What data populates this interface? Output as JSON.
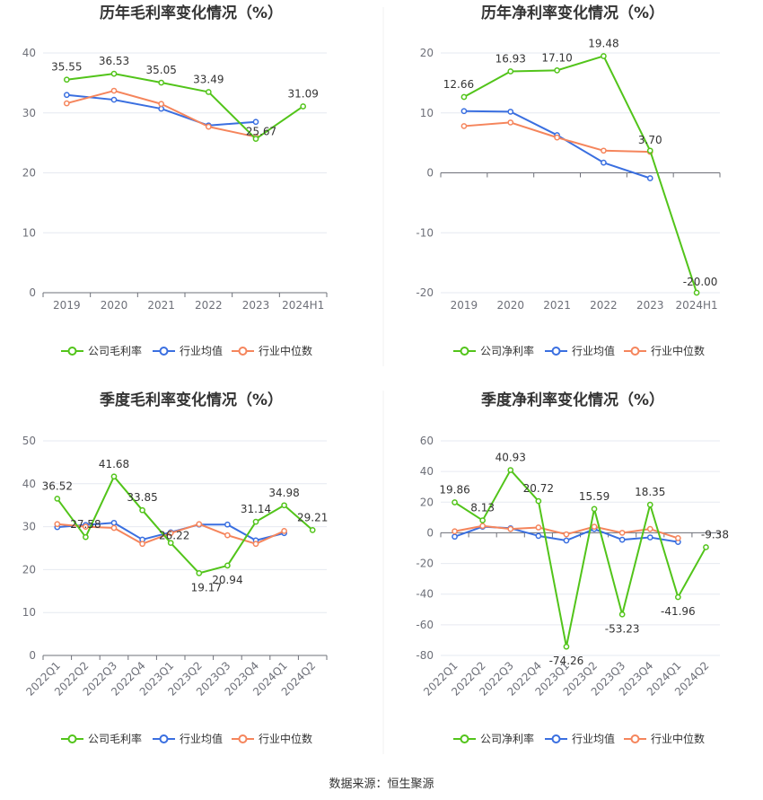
{
  "colors": {
    "company": "#52c41a",
    "industry_avg": "#3a6fe0",
    "industry_median": "#f5855c",
    "grid": "#e6e9f0",
    "axis": "#6e7079"
  },
  "legend": {
    "gross": [
      "公司毛利率",
      "行业均值",
      "行业中位数"
    ],
    "net": [
      "公司净利率",
      "行业均值",
      "行业中位数"
    ]
  },
  "source": "数据来源：恒生聚源",
  "chart_data": [
    {
      "type": "line",
      "title": "历年毛利率变化情况（%）",
      "categories": [
        "2019",
        "2020",
        "2021",
        "2022",
        "2023",
        "2024H1"
      ],
      "ylim": [
        0,
        40
      ],
      "yticks": [
        0,
        10,
        20,
        30,
        40
      ],
      "series": [
        {
          "name": "公司毛利率",
          "values": [
            35.55,
            36.53,
            35.05,
            33.49,
            25.67,
            31.09
          ],
          "labels": [
            "35.55",
            "36.53",
            "35.05",
            "33.49",
            "25.67",
            "31.09"
          ]
        },
        {
          "name": "行业均值",
          "values": [
            33.0,
            32.2,
            30.7,
            27.9,
            28.5,
            null
          ]
        },
        {
          "name": "行业中位数",
          "values": [
            31.6,
            33.7,
            31.5,
            27.7,
            26.0,
            null
          ]
        }
      ]
    },
    {
      "type": "line",
      "title": "历年净利率变化情况（%）",
      "categories": [
        "2019",
        "2020",
        "2021",
        "2022",
        "2023",
        "2024H1"
      ],
      "ylim": [
        -20,
        20
      ],
      "yticks": [
        -20,
        -10,
        0,
        10,
        20
      ],
      "series": [
        {
          "name": "公司净利率",
          "values": [
            12.66,
            16.93,
            17.1,
            19.48,
            3.7,
            -20.0
          ],
          "labels": [
            "12.66",
            "16.93",
            "17.10",
            "19.48",
            "3.70",
            "-20.00"
          ]
        },
        {
          "name": "行业均值",
          "values": [
            10.3,
            10.2,
            6.3,
            1.7,
            -0.9,
            null
          ]
        },
        {
          "name": "行业中位数",
          "values": [
            7.8,
            8.4,
            5.9,
            3.7,
            3.5,
            null
          ]
        }
      ]
    },
    {
      "type": "line",
      "title": "季度毛利率变化情况（%）",
      "categories": [
        "2022Q1",
        "2022Q2",
        "2022Q3",
        "2022Q4",
        "2023Q1",
        "2023Q2",
        "2023Q3",
        "2023Q4",
        "2024Q1",
        "2024Q2"
      ],
      "ylim": [
        0,
        50
      ],
      "yticks": [
        0,
        10,
        20,
        30,
        40,
        50
      ],
      "series": [
        {
          "name": "公司毛利率",
          "values": [
            36.52,
            27.58,
            41.68,
            33.85,
            26.22,
            19.17,
            20.94,
            31.14,
            34.98,
            29.21
          ],
          "labels": [
            "36.52",
            "27.58",
            "41.68",
            "33.85",
            "26.22",
            "19.17",
            "20.94",
            "31.14",
            "34.98",
            "29.21"
          ]
        },
        {
          "name": "行业均值",
          "values": [
            29.9,
            30.4,
            30.9,
            27.0,
            28.7,
            30.5,
            30.5,
            26.8,
            28.5,
            null
          ]
        },
        {
          "name": "行业中位数",
          "values": [
            30.6,
            30.0,
            29.7,
            26.0,
            28.5,
            30.6,
            28.0,
            26.0,
            29.0,
            null
          ]
        }
      ]
    },
    {
      "type": "line",
      "title": "季度净利率变化情况（%）",
      "categories": [
        "2022Q1",
        "2022Q2",
        "2022Q3",
        "2022Q4",
        "2023Q1",
        "2023Q2",
        "2023Q3",
        "2023Q4",
        "2024Q1",
        "2024Q2"
      ],
      "ylim": [
        -80,
        60
      ],
      "yticks": [
        -80,
        -60,
        -40,
        -20,
        0,
        20,
        40,
        60
      ],
      "series": [
        {
          "name": "公司净利率",
          "values": [
            19.86,
            8.13,
            40.93,
            20.72,
            -74.26,
            15.59,
            -53.23,
            18.35,
            -41.96,
            -9.38
          ],
          "labels": [
            "19.86",
            "8.13",
            "40.93",
            "20.72",
            "-74.26",
            "15.59",
            "-53.23",
            "18.35",
            "-41.96",
            "-9.38"
          ]
        },
        {
          "name": "行业均值",
          "values": [
            -2.5,
            4.0,
            3.0,
            -2.0,
            -5.0,
            2.5,
            -4.5,
            -3.0,
            -6.0,
            null
          ]
        },
        {
          "name": "行业中位数",
          "values": [
            1.0,
            4.5,
            2.5,
            3.5,
            -1.0,
            4.0,
            0.0,
            2.5,
            -3.5,
            null
          ]
        }
      ]
    }
  ]
}
